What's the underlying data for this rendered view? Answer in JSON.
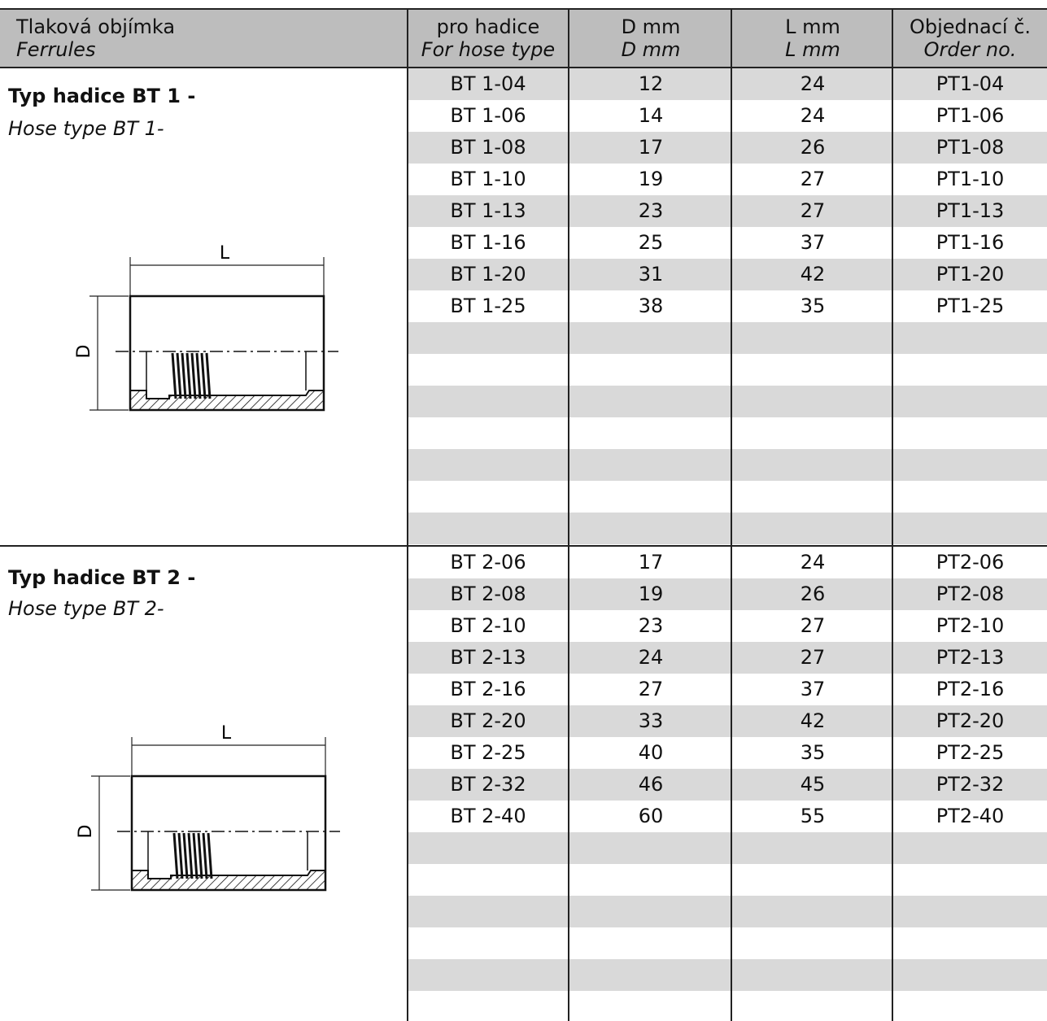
{
  "header": {
    "ferrules_cz": "Tlaková objímka",
    "ferrules_en": "Ferrules",
    "hose_cz": "pro hadice",
    "hose_en": "For hose type",
    "d_cz": "D mm",
    "d_en": "D mm",
    "l_cz": "L mm",
    "l_en": "L mm",
    "order_cz": "Objednací č.",
    "order_en": "Order no."
  },
  "sections": [
    {
      "title": "Typ hadice  BT 1 -",
      "subtitle": "Hose type BT 1-",
      "drawing_labels": {
        "length": "L",
        "diameter": "D"
      },
      "rows": [
        {
          "hose": "BT 1-04",
          "d": "12",
          "l": "24",
          "order": "PT1-04"
        },
        {
          "hose": "BT 1-06",
          "d": "14",
          "l": "24",
          "order": "PT1-06"
        },
        {
          "hose": "BT 1-08",
          "d": "17",
          "l": "26",
          "order": "PT1-08"
        },
        {
          "hose": "BT 1-10",
          "d": "19",
          "l": "27",
          "order": "PT1-10"
        },
        {
          "hose": "BT 1-13",
          "d": "23",
          "l": "27",
          "order": "PT1-13"
        },
        {
          "hose": "BT 1-16",
          "d": "25",
          "l": "37",
          "order": "PT1-16"
        },
        {
          "hose": "BT 1-20",
          "d": "31",
          "l": "42",
          "order": "PT1-20"
        },
        {
          "hose": "BT 1-25",
          "d": "38",
          "l": "35",
          "order": "PT1-25"
        }
      ]
    },
    {
      "title": "Typ hadice  BT 2 -",
      "subtitle": "Hose type BT 2-",
      "drawing_labels": {
        "length": "L",
        "diameter": "D"
      },
      "rows": [
        {
          "hose": "BT 2-06",
          "d": "17",
          "l": "24",
          "order": "PT2-06"
        },
        {
          "hose": "BT 2-08",
          "d": "19",
          "l": "26",
          "order": "PT2-08"
        },
        {
          "hose": "BT 2-10",
          "d": "23",
          "l": "27",
          "order": "PT2-10"
        },
        {
          "hose": "BT 2-13",
          "d": "24",
          "l": "27",
          "order": "PT2-13"
        },
        {
          "hose": "BT 2-16",
          "d": "27",
          "l": "37",
          "order": "PT2-16"
        },
        {
          "hose": "BT 2-20",
          "d": "33",
          "l": "42",
          "order": "PT2-20"
        },
        {
          "hose": "BT 2-25",
          "d": "40",
          "l": "35",
          "order": "PT2-25"
        },
        {
          "hose": "BT 2-32",
          "d": "46",
          "l": "45",
          "order": "PT2-32"
        },
        {
          "hose": "BT 2-40",
          "d": "60",
          "l": "55",
          "order": "PT2-40"
        }
      ]
    }
  ]
}
